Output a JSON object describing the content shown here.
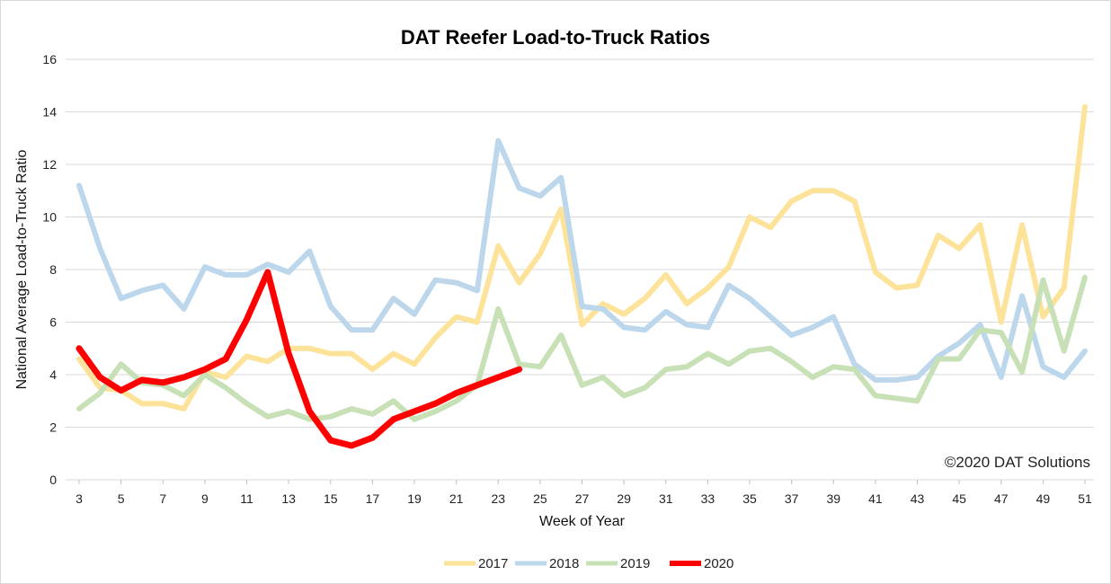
{
  "chart_data": {
    "type": "line",
    "title": "DAT Reefer Load-to-Truck Ratios",
    "xlabel": "Week of Year",
    "ylabel": "National Average Load-to-Truck Ratio",
    "ylim": [
      0,
      16
    ],
    "xlim": [
      3,
      51
    ],
    "y_ticks": [
      "0",
      "2",
      "4",
      "6",
      "8",
      "10",
      "12",
      "14",
      "16"
    ],
    "x_ticks": [
      "3",
      "5",
      "7",
      "9",
      "11",
      "13",
      "15",
      "17",
      "19",
      "21",
      "23",
      "25",
      "27",
      "29",
      "31",
      "33",
      "35",
      "37",
      "39",
      "41",
      "43",
      "45",
      "47",
      "49",
      "51"
    ],
    "grid": "horizontal",
    "legend_position": "bottom",
    "annotation": "©2020 DAT Solutions",
    "series": [
      {
        "name": "2017",
        "color": "#fde39a",
        "x": [
          3,
          4,
          5,
          6,
          7,
          8,
          9,
          10,
          11,
          12,
          13,
          14,
          15,
          16,
          17,
          18,
          19,
          20,
          21,
          22,
          23,
          24,
          25,
          26,
          27,
          28,
          29,
          30,
          31,
          32,
          33,
          34,
          35,
          36,
          37,
          38,
          39,
          40,
          41,
          42,
          43,
          44,
          45,
          46,
          47,
          48,
          49,
          50,
          51
        ],
        "values": [
          4.6,
          3.5,
          3.4,
          2.9,
          2.9,
          2.7,
          4.1,
          3.9,
          4.7,
          4.5,
          5.0,
          5.0,
          4.8,
          4.8,
          4.2,
          4.8,
          4.4,
          5.4,
          6.2,
          6.0,
          8.9,
          7.5,
          8.6,
          10.3,
          5.9,
          6.7,
          6.3,
          6.9,
          7.8,
          6.7,
          7.3,
          8.1,
          10.0,
          9.6,
          10.6,
          11.0,
          11.0,
          10.6,
          7.9,
          7.3,
          7.4,
          9.3,
          8.8,
          9.7,
          6.0,
          9.7,
          6.2,
          7.3,
          14.2
        ]
      },
      {
        "name": "2018",
        "color": "#bcd6ec",
        "x": [
          3,
          4,
          5,
          6,
          7,
          8,
          9,
          10,
          11,
          12,
          13,
          14,
          15,
          16,
          17,
          18,
          19,
          20,
          21,
          22,
          23,
          24,
          25,
          26,
          27,
          28,
          29,
          30,
          31,
          32,
          33,
          34,
          35,
          36,
          37,
          38,
          39,
          40,
          41,
          42,
          43,
          44,
          45,
          46,
          47,
          48,
          49,
          50,
          51
        ],
        "values": [
          11.2,
          8.8,
          6.9,
          7.2,
          7.4,
          6.5,
          8.1,
          7.8,
          7.8,
          8.2,
          7.9,
          8.7,
          6.6,
          5.7,
          5.7,
          6.9,
          6.3,
          7.6,
          7.5,
          7.2,
          12.9,
          11.1,
          10.8,
          11.5,
          6.6,
          6.5,
          5.8,
          5.7,
          6.4,
          5.9,
          5.8,
          7.4,
          6.9,
          6.2,
          5.5,
          5.8,
          6.2,
          4.4,
          3.8,
          3.8,
          3.9,
          4.7,
          5.2,
          5.9,
          3.9,
          7.0,
          4.3,
          3.9,
          4.9
        ]
      },
      {
        "name": "2019",
        "color": "#c7e0b5",
        "x": [
          3,
          4,
          5,
          6,
          7,
          8,
          9,
          10,
          11,
          12,
          13,
          14,
          15,
          16,
          17,
          18,
          19,
          20,
          21,
          22,
          23,
          24,
          25,
          26,
          27,
          28,
          29,
          30,
          31,
          32,
          33,
          34,
          35,
          36,
          37,
          38,
          39,
          40,
          41,
          42,
          43,
          44,
          45,
          46,
          47,
          48,
          49,
          50,
          51
        ],
        "values": [
          2.7,
          3.3,
          4.4,
          3.7,
          3.6,
          3.2,
          4.0,
          3.5,
          2.9,
          2.4,
          2.6,
          2.3,
          2.4,
          2.7,
          2.5,
          3.0,
          2.3,
          2.6,
          3.0,
          3.6,
          6.5,
          4.4,
          4.3,
          5.5,
          3.6,
          3.9,
          3.2,
          3.5,
          4.2,
          4.3,
          4.8,
          4.4,
          4.9,
          5.0,
          4.5,
          3.9,
          4.3,
          4.2,
          3.2,
          3.1,
          3.0,
          4.6,
          4.6,
          5.7,
          5.6,
          4.1,
          7.6,
          4.9,
          7.7
        ]
      },
      {
        "name": "2020",
        "color": "#ff0000",
        "x": [
          3,
          4,
          5,
          6,
          7,
          8,
          9,
          10,
          11,
          12,
          13,
          14,
          15,
          16,
          17,
          18,
          19,
          20,
          21,
          22,
          23,
          24
        ],
        "values": [
          5.0,
          3.9,
          3.4,
          3.8,
          3.7,
          3.9,
          4.2,
          4.6,
          6.1,
          7.9,
          4.8,
          2.6,
          1.5,
          1.3,
          1.6,
          2.3,
          2.6,
          2.9,
          3.3,
          3.6,
          3.9,
          4.2
        ]
      }
    ]
  }
}
